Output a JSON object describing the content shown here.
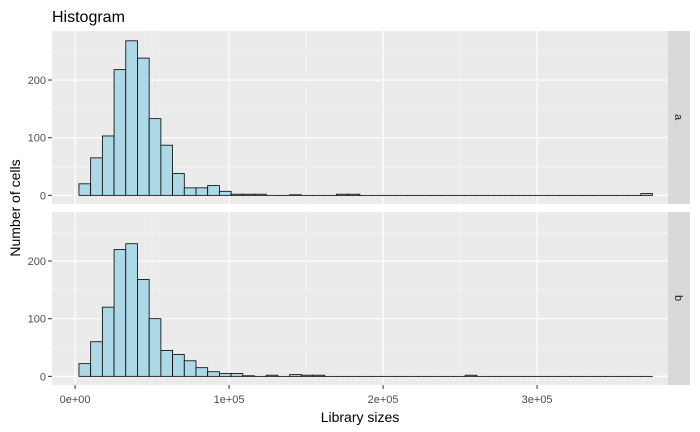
{
  "chart_data": {
    "type": "bar",
    "title": "Histogram",
    "xlabel": "Library sizes",
    "ylabel": "Number of cells",
    "xlim": [
      -15000,
      385000
    ],
    "ylim": [
      -15,
      285
    ],
    "x_ticks": [
      0,
      100000,
      200000,
      300000
    ],
    "x_tick_labels": [
      "0e+00",
      "1e+05",
      "2e+05",
      "3e+05"
    ],
    "y_ticks": [
      0,
      100,
      200
    ],
    "y_tick_labels": [
      "0",
      "100",
      "200"
    ],
    "bin_width": 7600,
    "bin_start": 2500,
    "grid": true,
    "fill_color": "#add8e6",
    "outline_color": "#000000",
    "panel_background": "#ebebeb",
    "strip_background": "#d9d9d9",
    "facets": [
      {
        "label": "a",
        "counts": [
          20,
          65,
          103,
          218,
          268,
          238,
          133,
          87,
          38,
          13,
          13,
          17,
          7,
          2,
          2,
          2,
          0,
          0,
          1,
          0,
          0,
          0,
          2,
          2,
          0,
          0,
          0,
          0,
          0,
          0,
          0,
          0,
          0,
          0,
          0,
          0,
          0,
          0,
          0,
          0,
          0,
          0,
          0,
          0,
          0,
          0,
          0,
          0,
          3
        ]
      },
      {
        "label": "b",
        "counts": [
          22,
          60,
          120,
          220,
          230,
          168,
          100,
          45,
          38,
          27,
          15,
          8,
          5,
          5,
          1,
          0,
          2,
          0,
          3,
          2,
          2,
          0,
          0,
          0,
          0,
          0,
          0,
          0,
          0,
          0,
          0,
          0,
          0,
          2,
          0,
          0,
          0,
          0,
          0,
          0,
          0,
          0,
          0,
          0,
          0,
          0,
          0,
          0,
          0
        ]
      }
    ]
  }
}
